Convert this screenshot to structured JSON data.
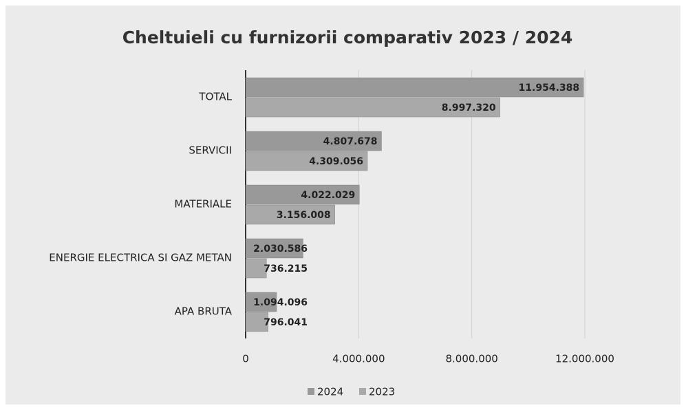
{
  "chart_data": {
    "type": "hbar",
    "title": "Cheltuieli cu furnizorii comparativ 2023 / 2024",
    "categories": [
      "TOTAL",
      "SERVICII",
      "MATERIALE",
      "ENERGIE ELECTRICA SI GAZ METAN",
      "APA BRUTA"
    ],
    "series": [
      {
        "name": "2024",
        "color": "#999999",
        "values": [
          11954388,
          4807678,
          4022029,
          2030586,
          1094096
        ],
        "value_labels": [
          "11.954.388",
          "4.807.678",
          "4.022.029",
          "2.030.586",
          "1.094.096"
        ]
      },
      {
        "name": "2023",
        "color": "#a9a9a9",
        "values": [
          8997320,
          4309056,
          3156008,
          736215,
          796041
        ],
        "value_labels": [
          "8.997.320",
          "4.309.056",
          "3.156.008",
          "736.215",
          "796.041"
        ]
      }
    ],
    "xlim": [
      0,
      12000000
    ],
    "xticks": [
      0,
      {
        "value": 4000000,
        "label": "4.000.000"
      },
      {
        "value": 8000000,
        "label": "8.000.000"
      },
      {
        "value": 12000000,
        "label": "12.000.000"
      }
    ],
    "grid": true,
    "legend": "bottom"
  }
}
